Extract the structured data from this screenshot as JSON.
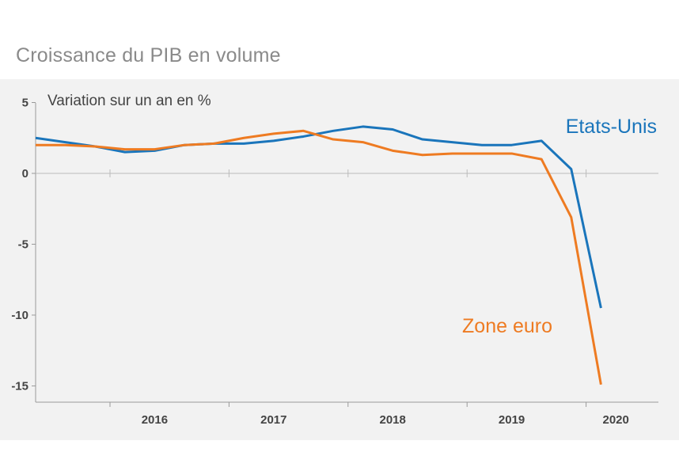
{
  "title": "Croissance du PIB en volume",
  "chart_data": {
    "type": "line",
    "title": "Croissance du PIB en volume",
    "ylabel": "Variation sur un an en %",
    "xlabel": "",
    "ylim": [
      -16,
      5
    ],
    "yticks": [
      5,
      0,
      -5,
      -10,
      -15
    ],
    "xticks": [
      "2016",
      "2017",
      "2018",
      "2019",
      "2020"
    ],
    "grid": false,
    "x": [
      "2015T2",
      "2015T3",
      "2015T4",
      "2016T1",
      "2016T2",
      "2016T3",
      "2016T4",
      "2017T1",
      "2017T2",
      "2017T3",
      "2017T4",
      "2018T1",
      "2018T2",
      "2018T3",
      "2018T4",
      "2019T1",
      "2019T2",
      "2019T3",
      "2019T4",
      "2020T1",
      "2020T2"
    ],
    "series": [
      {
        "name": "Etats-Unis",
        "color": "#1a75bb",
        "values": [
          2.5,
          2.2,
          1.9,
          1.5,
          1.6,
          2.0,
          2.1,
          2.1,
          2.3,
          2.6,
          3.0,
          3.3,
          3.1,
          2.4,
          2.2,
          2.0,
          2.0,
          2.3,
          0.3,
          -9.5,
          null
        ]
      },
      {
        "name": "Zone euro",
        "color": "#ee7b22",
        "values": [
          2.0,
          2.0,
          1.9,
          1.7,
          1.7,
          2.0,
          2.1,
          2.5,
          2.8,
          3.0,
          2.4,
          2.2,
          1.6,
          1.3,
          1.4,
          1.4,
          1.4,
          1.0,
          -3.1,
          -14.9,
          null
        ]
      }
    ]
  }
}
